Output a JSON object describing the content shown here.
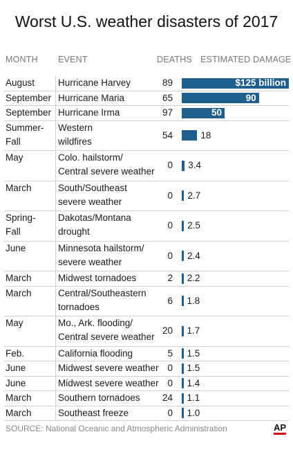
{
  "title": "Worst U.S. weather disasters of 2017",
  "headers": {
    "month": "MONTH",
    "event": "EVENT",
    "deaths": "DEATHS",
    "damage": "ESTIMATED DAMAGE"
  },
  "source": "SOURCE: National Oceanic and Atmospheric Administration",
  "logo": "AP",
  "colors": {
    "bar": "#1e5f8e",
    "rule": "#cfcfcf"
  },
  "chart_data": {
    "type": "table",
    "title": "Worst U.S. weather disasters of 2017",
    "columns": [
      "MONTH",
      "EVENT",
      "DEATHS",
      "ESTIMATED DAMAGE"
    ],
    "damage_unit": "billion dollars",
    "rows": [
      {
        "month": [
          "August"
        ],
        "event": [
          "Hurricane Harvey"
        ],
        "deaths": "89",
        "damage": 125,
        "damage_label": "$125 billion"
      },
      {
        "month": [
          "September"
        ],
        "event": [
          "Hurricane Maria"
        ],
        "deaths": "65",
        "damage": 90,
        "damage_label": "90"
      },
      {
        "month": [
          "September"
        ],
        "event": [
          "Hurricane Irma"
        ],
        "deaths": "97",
        "damage": 50,
        "damage_label": "50"
      },
      {
        "month": [
          "Summer-",
          "Fall"
        ],
        "event": [
          "Western",
          "wildfires"
        ],
        "deaths": "54",
        "damage": 18,
        "damage_label": "18"
      },
      {
        "month": [
          "May"
        ],
        "event": [
          "Colo. hailstorm/",
          "Central severe weather"
        ],
        "deaths": "0",
        "damage": 3.4,
        "damage_label": "3.4"
      },
      {
        "month": [
          "March"
        ],
        "event": [
          "South/Southeast",
          "severe weather"
        ],
        "deaths": "0",
        "damage": 2.7,
        "damage_label": "2.7"
      },
      {
        "month": [
          "Spring-",
          "Fall"
        ],
        "event": [
          "Dakotas/Montana",
          "drought"
        ],
        "deaths": "0",
        "damage": 2.5,
        "damage_label": "2.5"
      },
      {
        "month": [
          "June"
        ],
        "event": [
          "Minnesota hailstorm/",
          "severe weather"
        ],
        "deaths": "0",
        "damage": 2.4,
        "damage_label": "2.4"
      },
      {
        "month": [
          "March"
        ],
        "event": [
          "Midwest tornadoes"
        ],
        "deaths": "2",
        "damage": 2.2,
        "damage_label": "2.2"
      },
      {
        "month": [
          "March"
        ],
        "event": [
          "Central/Southeastern",
          "tornadoes"
        ],
        "deaths": "6",
        "damage": 1.8,
        "damage_label": "1.8"
      },
      {
        "month": [
          "May"
        ],
        "event": [
          "Mo., Ark. flooding/",
          "Central severe weather"
        ],
        "deaths": "20",
        "damage": 1.7,
        "damage_label": "1.7"
      },
      {
        "month": [
          "Feb."
        ],
        "event": [
          "California flooding"
        ],
        "deaths": "5",
        "damage": 1.5,
        "damage_label": "1.5"
      },
      {
        "month": [
          "June"
        ],
        "event": [
          "Midwest severe weather"
        ],
        "deaths": "0",
        "damage": 1.5,
        "damage_label": "1.5"
      },
      {
        "month": [
          "June"
        ],
        "event": [
          "Midwest severe weather"
        ],
        "deaths": "0",
        "damage": 1.4,
        "damage_label": "1.4"
      },
      {
        "month": [
          "March"
        ],
        "event": [
          "Southern tornadoes"
        ],
        "deaths": "24",
        "damage": 1.1,
        "damage_label": "1.1"
      },
      {
        "month": [
          "March"
        ],
        "event": [
          "Southeast freeze"
        ],
        "deaths": "0",
        "damage": 1.0,
        "damage_label": "1.0"
      }
    ]
  }
}
